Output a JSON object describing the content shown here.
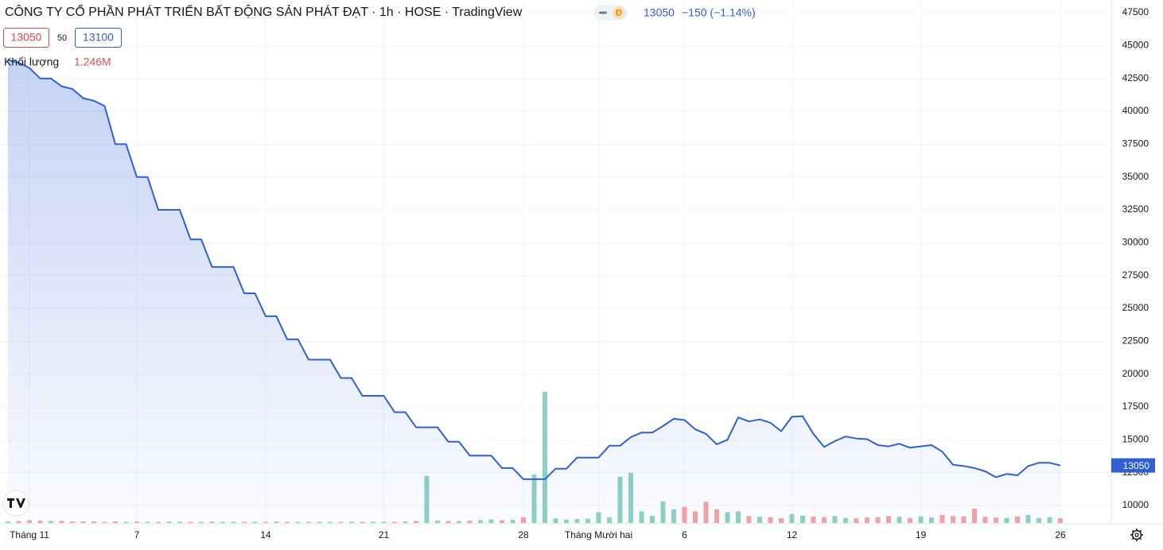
{
  "header": {
    "title": "CÔNG TY CỔ PHẦN PHÁT TRIỂN BẤT ĐỘNG SẢN PHÁT ĐẠT · 1h · HOSE · TradingView",
    "interval_badge": "D",
    "last_price": "13050",
    "change": "−150 (−1.14%)"
  },
  "quote": {
    "sell": "13050",
    "spread": "50",
    "buy": "13100"
  },
  "chart_data": {
    "type": "line",
    "categories": [
      null,
      null,
      "Tháng 11",
      null,
      null,
      null,
      null,
      null,
      null,
      null,
      null,
      null,
      "7",
      null,
      null,
      null,
      null,
      null,
      null,
      null,
      null,
      null,
      null,
      null,
      "14",
      null,
      null,
      null,
      null,
      null,
      null,
      null,
      null,
      null,
      null,
      "21",
      null,
      null,
      null,
      null,
      null,
      null,
      null,
      null,
      null,
      null,
      null,
      null,
      "28",
      null,
      null,
      null,
      null,
      null,
      null,
      "Tháng Mười hai",
      null,
      null,
      null,
      null,
      null,
      null,
      null,
      "6",
      null,
      null,
      null,
      null,
      null,
      null,
      null,
      null,
      null,
      "12",
      null,
      null,
      null,
      null,
      null,
      null,
      null,
      null,
      null,
      null,
      null,
      "19",
      null,
      null,
      null,
      null,
      null,
      null,
      null,
      null,
      null,
      null,
      null,
      null,
      "26"
    ],
    "series": [
      {
        "color": "#2f5fd6",
        "values": [
          43900,
          43700,
          43300,
          42500,
          42500,
          41900,
          41700,
          41000,
          40800,
          40400,
          37500,
          37500,
          35000,
          35000,
          32500,
          32500,
          32500,
          30250,
          30250,
          28150,
          28150,
          28150,
          26150,
          26150,
          24400,
          24400,
          22650,
          22650,
          21100,
          21100,
          21100,
          19700,
          19700,
          18350,
          18350,
          18350,
          17100,
          17100,
          15950,
          15950,
          15950,
          14850,
          14850,
          13800,
          13800,
          13800,
          12850,
          12850,
          12000,
          12000,
          12000,
          12800,
          12800,
          13650,
          13650,
          13650,
          14550,
          14550,
          15200,
          15550,
          15550,
          16050,
          16600,
          16500,
          15800,
          15450,
          14650,
          15000,
          16700,
          16400,
          16550,
          16300,
          15650,
          16750,
          16800,
          15450,
          14450,
          14900,
          15250,
          15100,
          15050,
          14600,
          14500,
          14700,
          14400,
          14500,
          14600,
          14100,
          13100,
          13000,
          12850,
          12600,
          12150,
          12400,
          12300,
          13000,
          13250,
          13250,
          13050
        ]
      }
    ],
    "volume": {
      "name": "Khối lượng",
      "label": "1.246M",
      "up_color": "#8fd1c6",
      "down_color": "#f2a3a3",
      "values": [
        400000,
        500000,
        700000,
        600000,
        500000,
        500000,
        400000,
        400000,
        400000,
        300000,
        400000,
        300000,
        350000,
        300000,
        300000,
        350000,
        300000,
        300000,
        300000,
        350000,
        300000,
        300000,
        300000,
        300000,
        300000,
        350000,
        300000,
        300000,
        300000,
        300000,
        300000,
        300000,
        350000,
        300000,
        300000,
        300000,
        300000,
        400000,
        500000,
        12200000,
        600000,
        500000,
        500000,
        600000,
        700000,
        900000,
        700000,
        800000,
        1500000,
        12600000,
        34000000,
        1200000,
        900000,
        1000000,
        1100000,
        2800000,
        1500000,
        12000000,
        13000000,
        3000000,
        1800000,
        5600000,
        3500000,
        4200000,
        3000000,
        5500000,
        3500000,
        2800000,
        3000000,
        1800000,
        1600000,
        1500000,
        1200000,
        2300000,
        1900000,
        1700000,
        1500000,
        1800000,
        1300000,
        1200000,
        1400000,
        1500000,
        1800000,
        1600000,
        1300000,
        1700000,
        1400000,
        2100000,
        1800000,
        1700000,
        3700000,
        1600000,
        1400000,
        1300000,
        1700000,
        2100000,
        1300000,
        1500000,
        1246000
      ]
    },
    "ylim": [
      8670,
      48470
    ],
    "yticks": [
      10000,
      12500,
      15000,
      17500,
      20000,
      22500,
      25000,
      27500,
      30000,
      32500,
      35000,
      37500,
      40000,
      42500,
      45000,
      47500
    ],
    "last_price_tag": 13050,
    "grid": true
  }
}
